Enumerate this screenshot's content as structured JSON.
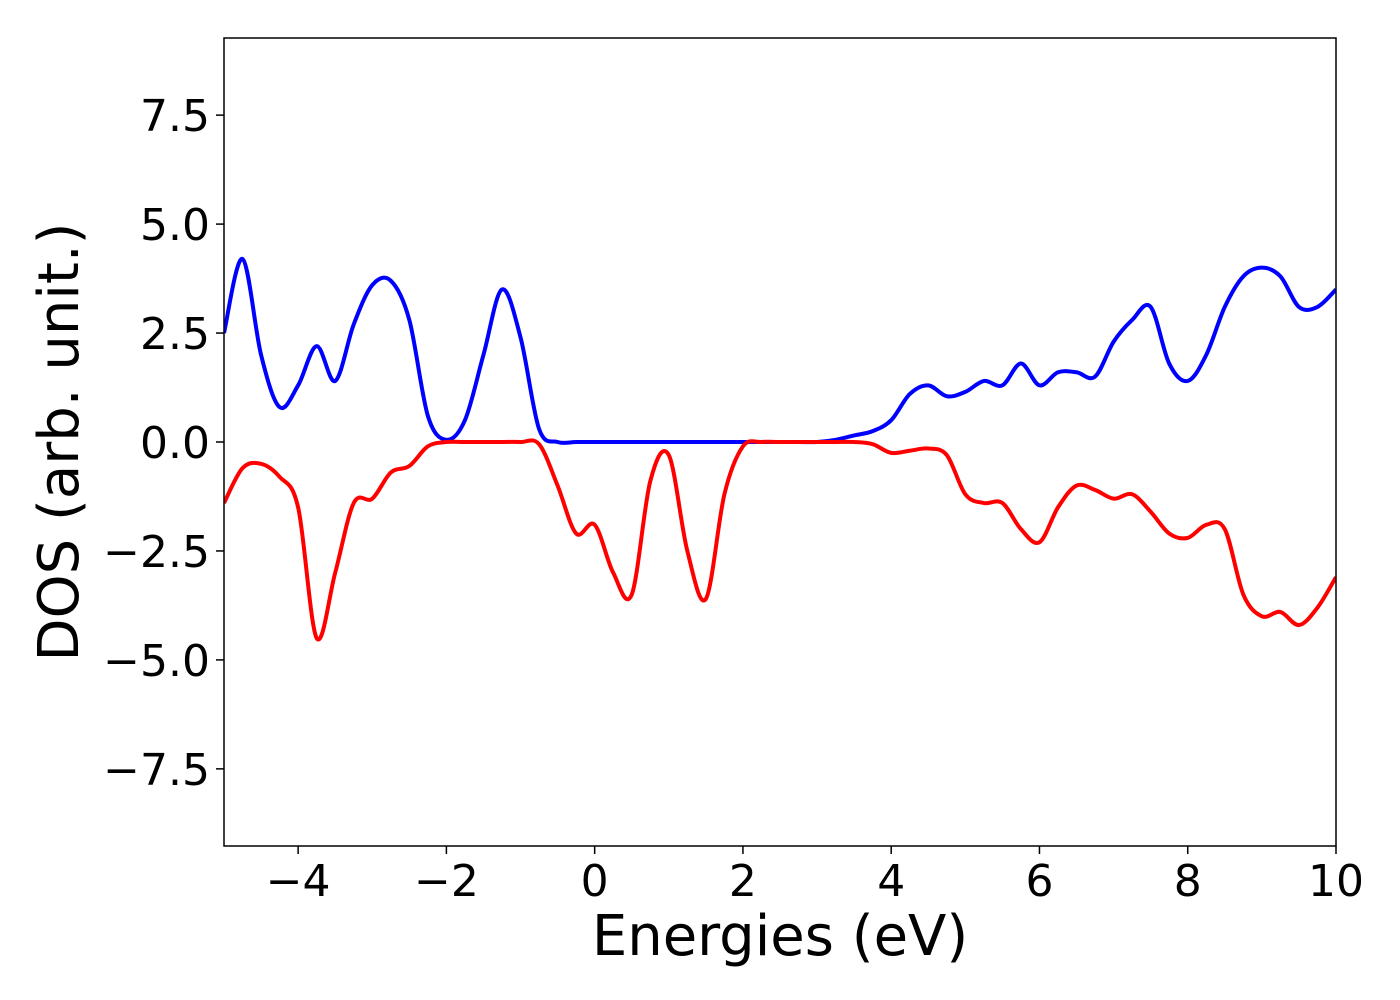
{
  "chart_data": {
    "type": "line",
    "xlabel": "Energies (eV)",
    "ylabel": "DOS (arb. unit.)",
    "x": [
      -5.0,
      -4.75,
      -4.5,
      -4.25,
      -4.0,
      -3.75,
      -3.5,
      -3.25,
      -3.0,
      -2.75,
      -2.5,
      -2.25,
      -2.0,
      -1.75,
      -1.5,
      -1.25,
      -1.0,
      -0.75,
      -0.5,
      -0.25,
      0.0,
      0.25,
      0.5,
      0.75,
      1.0,
      1.25,
      1.5,
      1.75,
      2.0,
      2.25,
      2.5,
      2.75,
      3.0,
      3.25,
      3.5,
      3.75,
      4.0,
      4.25,
      4.5,
      4.75,
      5.0,
      5.25,
      5.5,
      5.75,
      6.0,
      6.25,
      6.5,
      6.75,
      7.0,
      7.25,
      7.5,
      7.75,
      8.0,
      8.25,
      8.5,
      8.75,
      9.0,
      9.25,
      9.5,
      9.75,
      10.0
    ],
    "series": [
      {
        "color": "#0000ff",
        "values": [
          2.5,
          4.2,
          2.0,
          0.8,
          1.3,
          2.2,
          1.4,
          2.7,
          3.6,
          3.7,
          2.8,
          0.6,
          0.05,
          0.5,
          2.0,
          3.5,
          2.4,
          0.3,
          0.0,
          0.0,
          0.0,
          0.0,
          0.0,
          0.0,
          0.0,
          0.0,
          0.0,
          0.0,
          0.0,
          0.0,
          0.0,
          0.0,
          0.0,
          0.05,
          0.15,
          0.25,
          0.5,
          1.1,
          1.3,
          1.05,
          1.15,
          1.4,
          1.3,
          1.8,
          1.3,
          1.6,
          1.6,
          1.5,
          2.3,
          2.8,
          3.1,
          1.8,
          1.4,
          2.0,
          3.1,
          3.8,
          4.0,
          3.8,
          3.1,
          3.1,
          3.5
        ]
      },
      {
        "color": "#ff0000",
        "values": [
          -1.4,
          -0.6,
          -0.5,
          -0.8,
          -1.5,
          -4.5,
          -3.0,
          -1.4,
          -1.3,
          -0.7,
          -0.55,
          -0.1,
          0.0,
          0.0,
          0.0,
          0.0,
          0.0,
          -0.05,
          -1.0,
          -2.1,
          -1.9,
          -3.0,
          -3.5,
          -0.9,
          -0.3,
          -2.5,
          -3.6,
          -1.2,
          -0.1,
          0.0,
          0.0,
          0.0,
          0.0,
          0.0,
          0.0,
          -0.05,
          -0.25,
          -0.2,
          -0.15,
          -0.3,
          -1.2,
          -1.4,
          -1.4,
          -2.0,
          -2.3,
          -1.5,
          -1.0,
          -1.1,
          -1.3,
          -1.2,
          -1.6,
          -2.1,
          -2.2,
          -1.9,
          -2.0,
          -3.5,
          -4.0,
          -3.9,
          -4.2,
          -3.8,
          -3.1
        ]
      }
    ],
    "xlim": [
      -5,
      10
    ],
    "ylim": [
      -9.27,
      9.27
    ],
    "xticks": [
      {
        "value": -4,
        "label": "−4"
      },
      {
        "value": -2,
        "label": "−2"
      },
      0,
      2,
      4,
      6,
      8,
      10
    ],
    "yticks": [
      {
        "value": -7.5,
        "label": "−7.5"
      },
      {
        "value": -5,
        "label": "−5.0"
      },
      {
        "value": -2.5,
        "label": "−2.5"
      },
      {
        "value": 0,
        "label": "0.0"
      },
      {
        "value": 2.5,
        "label": "2.5"
      },
      {
        "value": 5,
        "label": "5.0"
      },
      {
        "value": 7.5,
        "label": "7.5"
      }
    ],
    "grid": false
  }
}
